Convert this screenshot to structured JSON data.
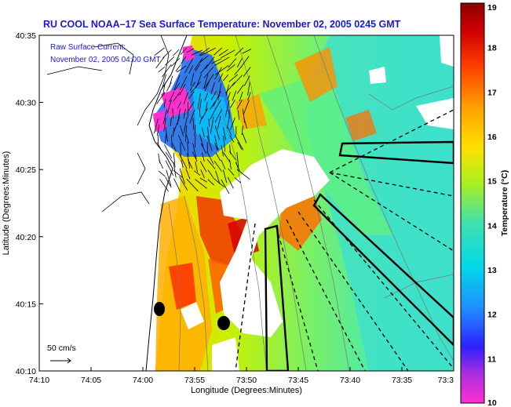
{
  "map": {
    "title": "RU COOL  NOAA–17  Sea Surface Temperature:  November 02, 2005 0245 GMT",
    "inset_line1": "Raw Surface Current:",
    "inset_line2": "November 02, 2005 04:00 GMT",
    "scale_label": "50 cm/s",
    "xlabel": "Longitude (Degrees:Minutes)",
    "ylabel": "Latitude (Degrees:Minutes)",
    "x_ticks": [
      "74:10",
      "74:05",
      "74:00",
      "73:55",
      "73:50",
      "73:45",
      "73:40",
      "73:35",
      "73:3"
    ],
    "y_ticks": [
      "40:35",
      "40:30",
      "40:25",
      "40:20",
      "40:15",
      "40:10"
    ],
    "colorbar": {
      "label": "Temperature (°C)",
      "ticks": [
        "19",
        "18",
        "17",
        "16",
        "15",
        "14",
        "13",
        "12",
        "11",
        "10"
      ],
      "colors": [
        "#ff30d0",
        "#8a2be2",
        "#2030ff",
        "#1e90ff",
        "#00d8e8",
        "#40e0b0",
        "#b8f000",
        "#ffe000",
        "#ffa000",
        "#ff5000",
        "#d00000",
        "#8b0000"
      ]
    },
    "colors": {
      "title": "#1a1acc",
      "land": "#ffffff",
      "outline": "#000000"
    }
  }
}
